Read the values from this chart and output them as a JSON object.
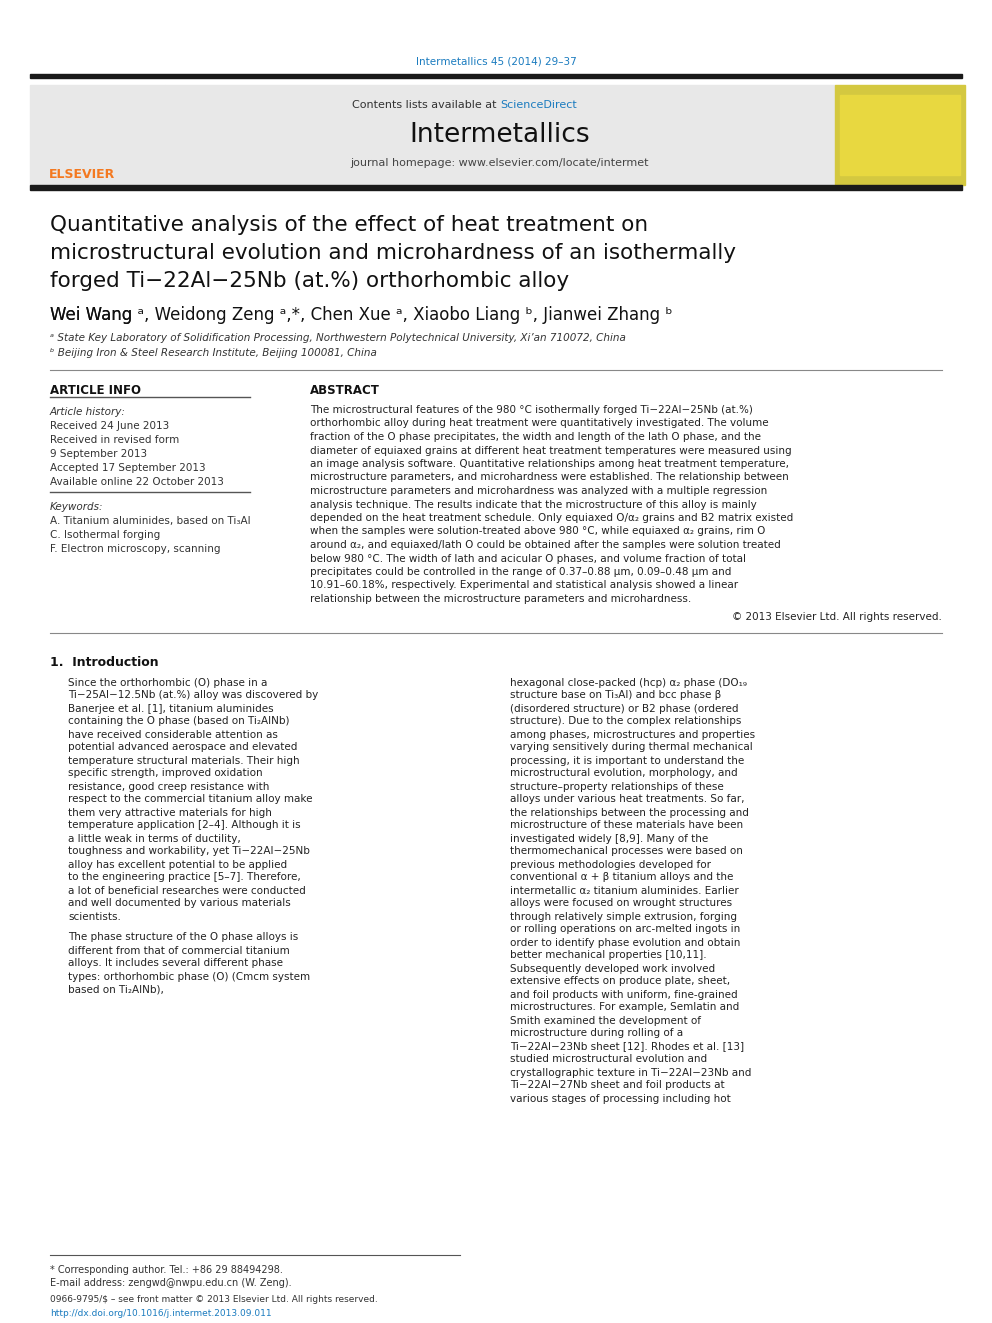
{
  "page_bg": "#ffffff",
  "top_citation": "Intermetallics 45 (2014) 29–37",
  "top_citation_color": "#1a7bbf",
  "header_bg": "#e8e8e8",
  "header_text_contents": "Contents lists available at ",
  "header_text_sciencedirect": "ScienceDirect",
  "header_sciencedirect_color": "#1a7bbf",
  "journal_name": "Intermetallics",
  "journal_homepage": "journal homepage: www.elsevier.com/locate/intermet",
  "thick_bar_color": "#1a1a1a",
  "paper_title_line1": "Quantitative analysis of the effect of heat treatment on",
  "paper_title_line2": "microstructural evolution and microhardness of an isothermally",
  "paper_title_line3": "forged Ti−22Al−25Nb (at.%) orthorhombic alloy",
  "authors": "Wei Wang ᵃ, Weidong Zeng ᵃ,*, Chen Xue ᵃ, Xiaobo Liang ᵇ, Jianwei Zhang ᵇ",
  "affil_a": "ᵃ State Key Laboratory of Solidification Processing, Northwestern Polytechnical University, Xi’an 710072, China",
  "affil_b": "ᵇ Beijing Iron & Steel Research Institute, Beijing 100081, China",
  "article_info_header": "ARTICLE INFO",
  "abstract_header": "ABSTRACT",
  "article_history_label": "Article history:",
  "received": "Received 24 June 2013",
  "revised": "Received in revised form",
  "revised2": "9 September 2013",
  "accepted": "Accepted 17 September 2013",
  "available": "Available online 22 October 2013",
  "keywords_label": "Keywords:",
  "keyword1": "A. Titanium aluminides, based on Ti₃Al",
  "keyword2": "C. Isothermal forging",
  "keyword3": "F. Electron microscopy, scanning",
  "abstract_text": "The microstructural features of the 980 °C isothermally forged Ti−22Al−25Nb (at.%) orthorhombic alloy during heat treatment were quantitatively investigated. The volume fraction of the O phase precipitates, the width and length of the lath O phase, and the diameter of equiaxed grains at different heat treatment temperatures were measured using an image analysis software. Quantitative relationships among heat treatment temperature, microstructure parameters, and microhardness were established. The relationship between microstructure parameters and microhardness was analyzed with a multiple regression analysis technique. The results indicate that the microstructure of this alloy is mainly depended on the heat treatment schedule. Only equiaxed O/α₂ grains and B2 matrix existed when the samples were solution-treated above 980 °C, while equiaxed α₂ grains, rim O around α₂, and equiaxed/lath O could be obtained after the samples were solution treated below 980 °C. The width of lath and acicular O phases, and volume fraction of total precipitates could be controlled in the range of 0.37–0.88 μm, 0.09–0.48 μm and 10.91–60.18%, respectively. Experimental and statistical analysis showed a linear relationship between the microstructure parameters and microhardness.",
  "copyright": "© 2013 Elsevier Ltd. All rights reserved.",
  "intro_header": "1.  Introduction",
  "intro_col1_para1": "Since the orthorhombic (O) phase in a Ti−25Al−12.5Nb (at.%) alloy was discovered by Banerjee et al. [1], titanium aluminides containing the O phase (based on Ti₂AlNb) have received considerable attention as potential advanced aerospace and elevated temperature structural materials. Their high specific strength, improved oxidation resistance, good creep resistance with respect to the commercial titanium alloy make them very attractive materials for high temperature application [2–4]. Although it is a little weak in terms of ductility, toughness and workability, yet Ti−22Al−25Nb alloy has excellent potential to be applied to the engineering practice [5–7]. Therefore, a lot of beneficial researches were conducted and well documented by various materials scientists.",
  "intro_col1_para2": "The phase structure of the O phase alloys is different from that of commercial titanium alloys. It includes several different phase types: orthorhombic phase (O) (Cmcm system based on Ti₂AlNb),",
  "intro_col2_para1": "hexagonal close-packed (hcp) α₂ phase (DO₁₉ structure base on Ti₃Al) and bcc phase β (disordered structure) or B2 phase (ordered structure). Due to the complex relationships among phases, microstructures and properties varying sensitively during thermal mechanical processing, it is important to understand the microstructural evolution, morphology, and structure–property relationships of these alloys under various heat treatments. So far, the relationships between the processing and microstructure of these materials have been investigated widely [8,9]. Many of the thermomechanical processes were based on previous methodologies developed for conventional α + β titanium alloys and the intermetallic α₂ titanium aluminides. Earlier alloys were focused on wrought structures through relatively simple extrusion, forging or rolling operations on arc-melted ingots in order to identify phase evolution and obtain better mechanical properties [10,11]. Subsequently developed work involved extensive effects on produce plate, sheet, and foil products with uniform, fine-grained microstructures. For example, Semlatin and Smith examined the development of microstructure during rolling of a Ti−22Al−23Nb sheet [12]. Rhodes et al. [13] studied microstructural evolution and crystallographic texture in Ti−22Al−23Nb and Ti−22Al−27Nb sheet and foil products at various stages of processing including hot",
  "footnote_star": "* Corresponding author. Tel.: +86 29 88494298.",
  "footnote_email": "E-mail address: zengwd@nwpu.edu.cn (W. Zeng).",
  "bottom_issn": "0966-9795/$ – see front matter © 2013 Elsevier Ltd. All rights reserved.",
  "bottom_doi": "http://dx.doi.org/10.1016/j.intermet.2013.09.011",
  "elsevier_color": "#f47920"
}
